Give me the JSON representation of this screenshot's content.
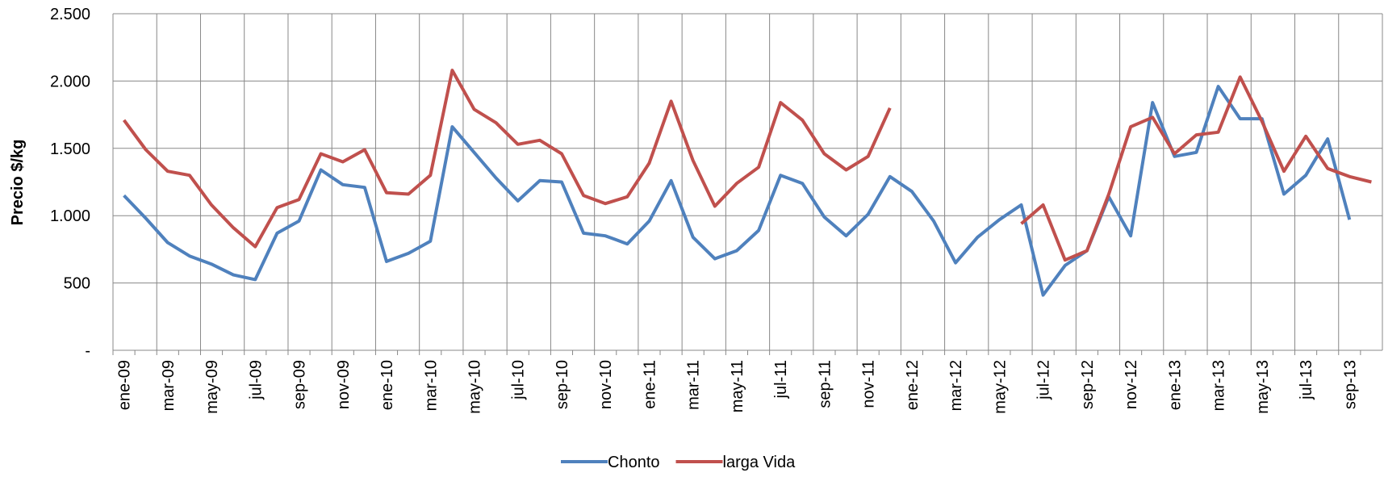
{
  "chart_data": {
    "type": "line",
    "y_label": "Precio $/kg",
    "categories": [
      "ene-09",
      null,
      "mar-09",
      null,
      "may-09",
      null,
      "jul-09",
      null,
      "sep-09",
      null,
      "nov-09",
      null,
      "ene-10",
      null,
      "mar-10",
      null,
      "may-10",
      null,
      "jul-10",
      null,
      "sep-10",
      null,
      "nov-10",
      null,
      "ene-11",
      null,
      "mar-11",
      null,
      "may-11",
      null,
      "jul-11",
      null,
      "sep-11",
      null,
      "nov-11",
      null,
      "ene-12",
      null,
      "mar-12",
      null,
      "may-12",
      null,
      "jul-12",
      null,
      "sep-12",
      null,
      "nov-12",
      null,
      "ene-13",
      null,
      "mar-13",
      null,
      "may-13",
      null,
      "jul-13",
      null,
      "sep-13",
      null
    ],
    "series": [
      {
        "name": "Chonto",
        "color": "#4f81bd",
        "values": [
          1150,
          980,
          800,
          700,
          640,
          560,
          525,
          870,
          960,
          1340,
          1230,
          1210,
          660,
          720,
          810,
          1660,
          1470,
          1280,
          1110,
          1260,
          1250,
          870,
          850,
          790,
          960,
          1260,
          840,
          680,
          740,
          890,
          1300,
          1240,
          990,
          850,
          1010,
          1290,
          1180,
          960,
          650,
          840,
          970,
          1080,
          410,
          630,
          740,
          1140,
          850,
          1840,
          1440,
          1470,
          1960,
          1720,
          1720,
          1160,
          1300,
          1570,
          970,
          null
        ]
      },
      {
        "name": "larga Vida",
        "color": "#c0504d",
        "values": [
          1710,
          1490,
          1330,
          1300,
          1080,
          910,
          770,
          1060,
          1120,
          1460,
          1400,
          1490,
          1170,
          1160,
          1300,
          2080,
          1790,
          1690,
          1530,
          1560,
          1460,
          1150,
          1090,
          1140,
          1390,
          1850,
          1410,
          1070,
          1240,
          1360,
          1840,
          1710,
          1460,
          1340,
          1440,
          1800,
          null,
          null,
          null,
          null,
          null,
          940,
          1080,
          670,
          740,
          1160,
          1660,
          1730,
          1460,
          1600,
          1620,
          2030,
          1700,
          1330,
          1590,
          1350,
          1290,
          1250
        ]
      }
    ],
    "ylim": [
      0,
      2500
    ],
    "yticks": [
      {
        "value": 0,
        "label": "-"
      },
      500,
      {
        "value": 1000,
        "label": "1.000"
      },
      {
        "value": 1500,
        "label": "1.500"
      },
      {
        "value": 2000,
        "label": "2.000"
      },
      {
        "value": 2500,
        "label": "2.500"
      }
    ],
    "grid": true,
    "legend": "bottom"
  }
}
